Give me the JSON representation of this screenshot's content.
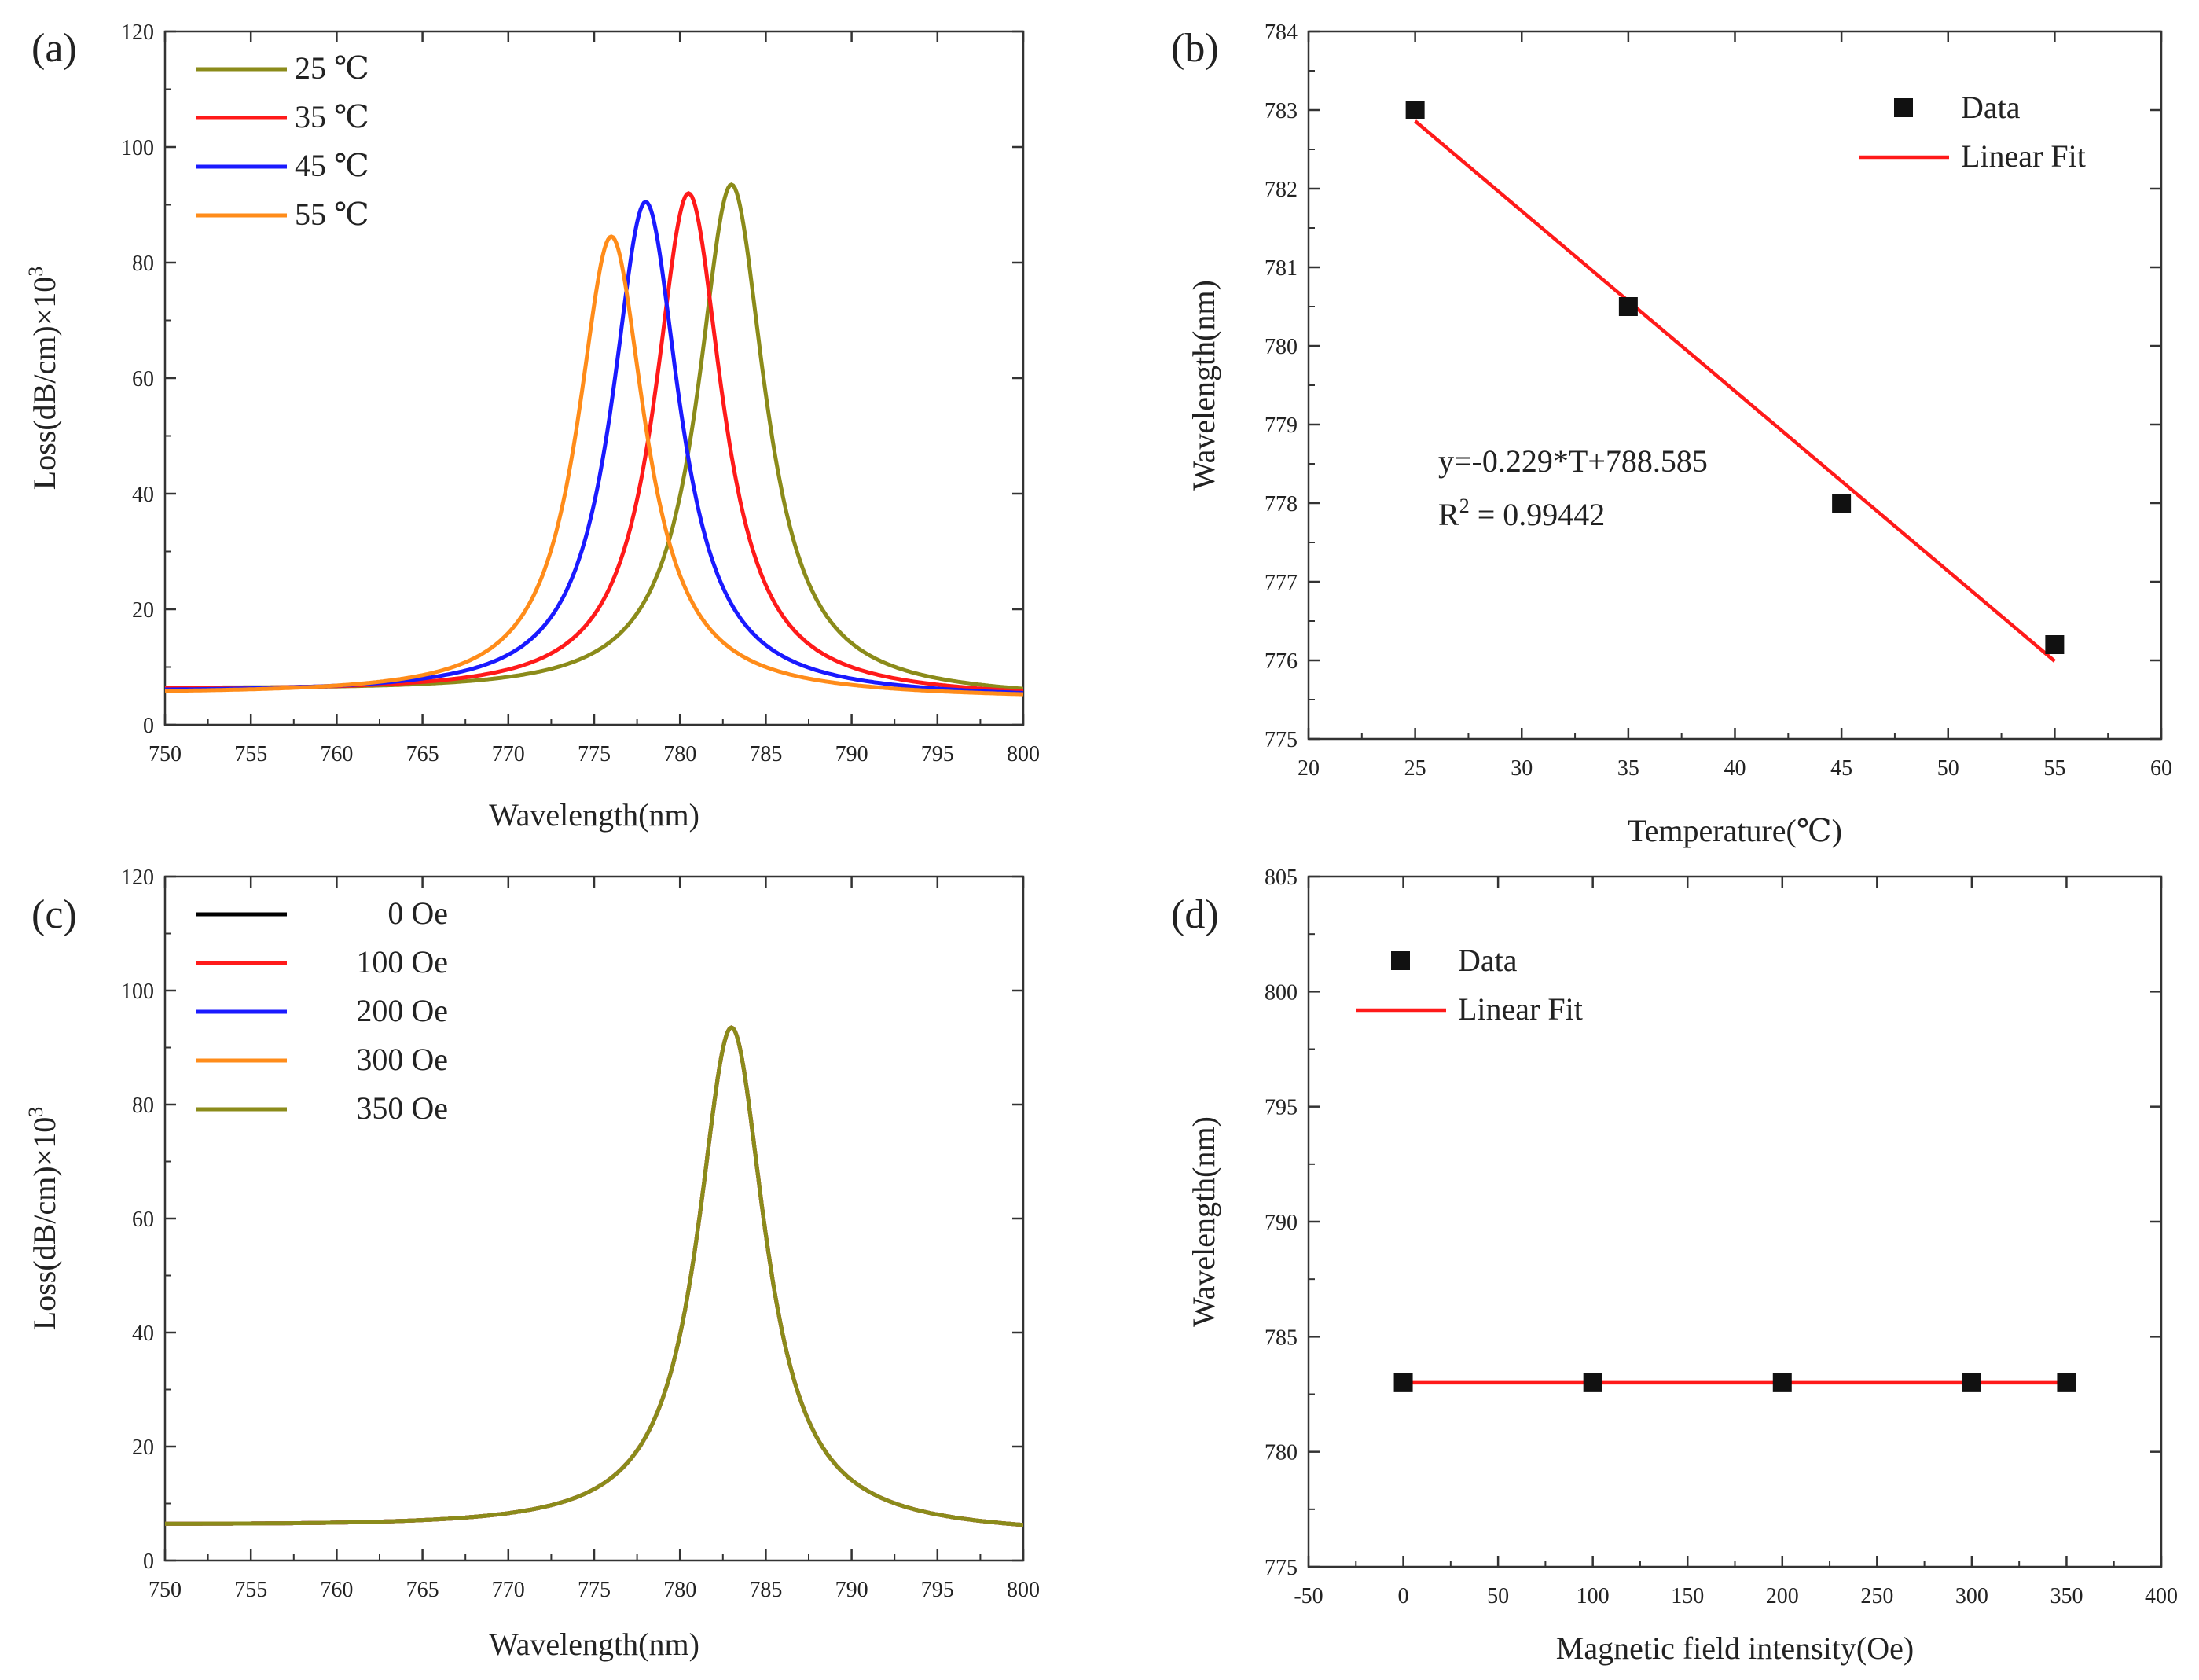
{
  "chart_data": [
    {
      "panel": "(a)",
      "type": "line",
      "xlabel": "Wavelength(nm)",
      "ylabel": "Loss(dB/cm)×10",
      "ylabel_exp": "3",
      "xlim": [
        750,
        800
      ],
      "ylim": [
        0,
        120
      ],
      "xticks": [
        "750",
        "755",
        "760",
        "765",
        "770",
        "775",
        "780",
        "785",
        "790",
        "795",
        "800"
      ],
      "yticks": [
        "0",
        "20",
        "40",
        "60",
        "80",
        "100",
        "120"
      ],
      "legend_position": "top-left",
      "series": [
        {
          "name": "25 ℃",
          "color": "#8b8b1a",
          "peak_x": 783,
          "peak_y": 93.5,
          "hwhm": 2.4,
          "base_left": 6.0,
          "base_right": 4.5
        },
        {
          "name": "35 ℃",
          "color": "#ff1a1a",
          "peak_x": 780.5,
          "peak_y": 92.0,
          "hwhm": 2.4,
          "base_left": 5.8,
          "base_right": 4.5
        },
        {
          "name": "45 ℃",
          "color": "#1a1aff",
          "peak_x": 778,
          "peak_y": 90.5,
          "hwhm": 2.4,
          "base_left": 5.5,
          "base_right": 4.5
        },
        {
          "name": "55 ℃",
          "color": "#ff8c1a",
          "peak_x": 776,
          "peak_y": 84.5,
          "hwhm": 2.4,
          "base_left": 5.2,
          "base_right": 4.5
        }
      ]
    },
    {
      "panel": "(b)",
      "type": "scatter",
      "xlabel": "Temperature(℃)",
      "ylabel": "Wavelength(nm)",
      "xlim": [
        20,
        60
      ],
      "ylim": [
        775,
        784
      ],
      "xticks": [
        "20",
        "25",
        "30",
        "35",
        "40",
        "45",
        "50",
        "55",
        "60"
      ],
      "yticks": [
        "775",
        "776",
        "777",
        "778",
        "779",
        "780",
        "781",
        "782",
        "783",
        "784"
      ],
      "legend_position": "top-right",
      "legend": {
        "data": "Data",
        "fit": "Linear Fit"
      },
      "points": {
        "x": [
          25,
          35,
          45,
          55
        ],
        "y": [
          783.0,
          780.5,
          778.0,
          776.2
        ]
      },
      "fit": {
        "x": [
          25,
          55
        ],
        "y": [
          782.86,
          775.99
        ],
        "color": "#ff1a1a"
      },
      "annotation": {
        "equation": "y=-0.229*T+788.585",
        "r2_prefix": "R",
        "r2_sup": "2",
        "r2_value": " = 0.99442"
      }
    },
    {
      "panel": "(c)",
      "type": "line",
      "xlabel": "Wavelength(nm)",
      "ylabel": "Loss(dB/cm)×10",
      "ylabel_exp": "3",
      "xlim": [
        750,
        800
      ],
      "ylim": [
        0,
        120
      ],
      "xticks": [
        "750",
        "755",
        "760",
        "765",
        "770",
        "775",
        "780",
        "785",
        "790",
        "795",
        "800"
      ],
      "yticks": [
        "0",
        "20",
        "40",
        "60",
        "80",
        "100",
        "120"
      ],
      "legend_position": "top-left",
      "series": [
        {
          "name": "0 Oe",
          "color": "#000000",
          "peak_x": 783,
          "peak_y": 93.5,
          "hwhm": 2.4,
          "base_left": 6.0,
          "base_right": 4.5
        },
        {
          "name": "100 Oe",
          "color": "#ff1a1a",
          "peak_x": 783,
          "peak_y": 93.5,
          "hwhm": 2.4,
          "base_left": 6.0,
          "base_right": 4.5
        },
        {
          "name": "200 Oe",
          "color": "#1a1aff",
          "peak_x": 783,
          "peak_y": 93.5,
          "hwhm": 2.4,
          "base_left": 6.0,
          "base_right": 4.5
        },
        {
          "name": "300 Oe",
          "color": "#ff8c1a",
          "peak_x": 783,
          "peak_y": 93.5,
          "hwhm": 2.4,
          "base_left": 6.0,
          "base_right": 4.5
        },
        {
          "name": "350 Oe",
          "color": "#8b8b1a",
          "peak_x": 783,
          "peak_y": 93.5,
          "hwhm": 2.4,
          "base_left": 6.0,
          "base_right": 4.5
        }
      ]
    },
    {
      "panel": "(d)",
      "type": "scatter",
      "xlabel": "Magnetic field intensity(Oe)",
      "ylabel": "Wavelength(nm)",
      "xlim": [
        -50,
        400
      ],
      "ylim": [
        775,
        805
      ],
      "xticks": [
        "-50",
        "0",
        "50",
        "100",
        "150",
        "200",
        "250",
        "300",
        "350",
        "400"
      ],
      "yticks": [
        "775",
        "780",
        "785",
        "790",
        "795",
        "800",
        "805"
      ],
      "legend_position": "top-left",
      "legend": {
        "data": "Data",
        "fit": "Linear Fit"
      },
      "points": {
        "x": [
          0,
          100,
          200,
          300,
          350
        ],
        "y": [
          783,
          783,
          783,
          783,
          783
        ]
      },
      "fit": {
        "x": [
          0,
          350
        ],
        "y": [
          783,
          783
        ],
        "color": "#ff1a1a"
      }
    }
  ]
}
